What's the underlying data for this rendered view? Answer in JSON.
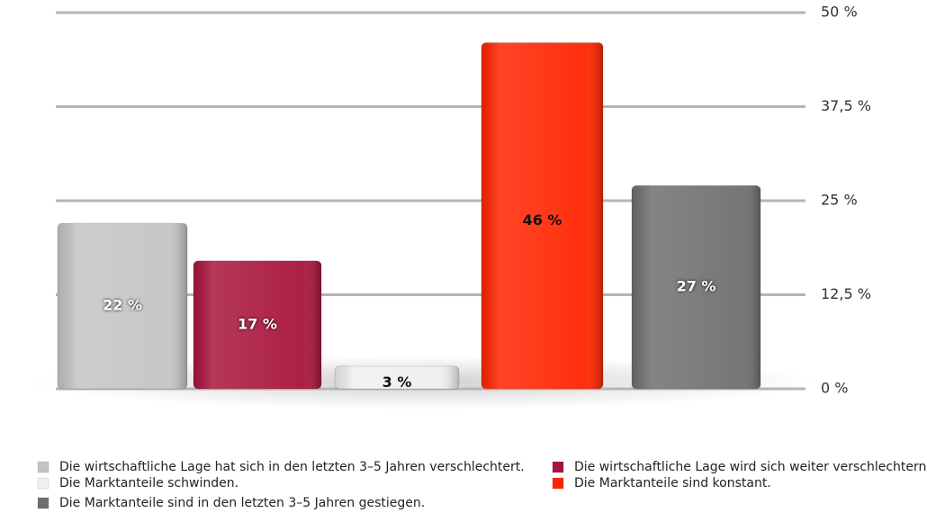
{
  "chart_data": {
    "type": "bar",
    "ylim": [
      0,
      50
    ],
    "yticks": [
      {
        "value": 0,
        "label": "0 %"
      },
      {
        "value": 12.5,
        "label": "12,5 %"
      },
      {
        "value": 25,
        "label": "25 %"
      },
      {
        "value": 37.5,
        "label": "37,5 %"
      },
      {
        "value": 50,
        "label": "50 %"
      }
    ],
    "grid": true,
    "series": [
      {
        "name": "Die wirtschaftliche Lage hat sich in den letzten 3–5 Jahren verschlechtert.",
        "color": "#c4c4c4",
        "values": [
          22
        ],
        "value_labels": [
          "22 %"
        ]
      },
      {
        "name": "Die wirtschaftliche Lage wird sich weiter verschlechtern.",
        "color": "#a8143c",
        "values": [
          17
        ],
        "value_labels": [
          "17 %"
        ]
      },
      {
        "name": "Die Marktanteile schwinden.",
        "color": "#efefef",
        "values": [
          3
        ],
        "value_labels": [
          "3 %"
        ]
      },
      {
        "name": "Die Marktanteile sind konstant.",
        "color": "#ff2400",
        "values": [
          46
        ],
        "value_labels": [
          "46 %"
        ]
      },
      {
        "name": "Die Marktanteile sind in den letzten 3–5 Jahren gestiegen.",
        "color": "#6f6f6f",
        "values": [
          27
        ],
        "value_labels": [
          "27 %"
        ]
      }
    ]
  }
}
